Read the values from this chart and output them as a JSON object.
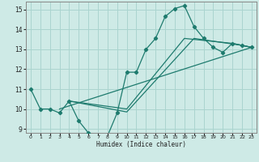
{
  "xlabel": "Humidex (Indice chaleur)",
  "bg_color": "#ceeae6",
  "grid_color": "#aad4cf",
  "line_color": "#1e7b6e",
  "xlim": [
    -0.5,
    23.5
  ],
  "ylim": [
    8.8,
    15.4
  ],
  "yticks": [
    9,
    10,
    11,
    12,
    13,
    14,
    15
  ],
  "xticks": [
    0,
    1,
    2,
    3,
    4,
    5,
    6,
    7,
    8,
    9,
    10,
    11,
    12,
    13,
    14,
    15,
    16,
    17,
    18,
    19,
    20,
    21,
    22,
    23
  ],
  "line_main": {
    "x": [
      0,
      1,
      2,
      3,
      4,
      5,
      6,
      7,
      8,
      9,
      10,
      11,
      12,
      13,
      14,
      15,
      16,
      17,
      18,
      19,
      20,
      21,
      22,
      23
    ],
    "y": [
      11.0,
      10.0,
      10.0,
      9.8,
      10.4,
      9.4,
      8.8,
      8.6,
      8.65,
      9.8,
      11.85,
      11.85,
      13.0,
      13.55,
      14.65,
      15.05,
      15.2,
      14.15,
      13.55,
      13.1,
      12.85,
      13.3,
      13.2,
      13.1
    ]
  },
  "line_diag1": {
    "x": [
      3.0,
      23.0
    ],
    "y": [
      10.0,
      13.1
    ]
  },
  "line_diag2": {
    "x": [
      4.0,
      10.0,
      16.0,
      21.0,
      23.0
    ],
    "y": [
      10.4,
      10.0,
      13.55,
      13.3,
      13.1
    ]
  },
  "line_diag3": {
    "x": [
      4.0,
      10.0,
      17.0,
      22.0,
      23.0
    ],
    "y": [
      10.4,
      9.85,
      13.55,
      13.2,
      13.1
    ]
  }
}
